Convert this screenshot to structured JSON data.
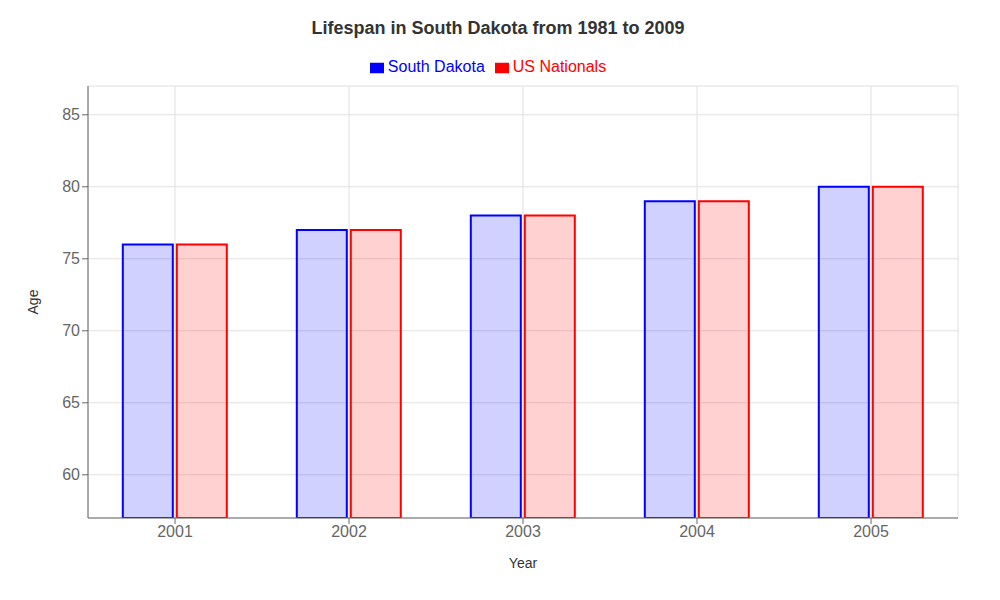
{
  "chart_data": {
    "type": "bar",
    "title": "Lifespan in South Dakota from 1981 to 2009",
    "xlabel": "Year",
    "ylabel": "Age",
    "categories": [
      2001,
      2002,
      2003,
      2004,
      2005
    ],
    "series": [
      {
        "name": "South Dakota",
        "color": "#0000ff",
        "values": [
          76,
          77,
          78,
          79,
          80
        ]
      },
      {
        "name": "US Nationals",
        "color": "#ff0000",
        "values": [
          76,
          77,
          78,
          79,
          80
        ]
      }
    ],
    "ylim": [
      57,
      87
    ],
    "yticks": [
      60,
      65,
      70,
      75,
      80,
      85
    ],
    "grid": true,
    "legend": "top"
  }
}
